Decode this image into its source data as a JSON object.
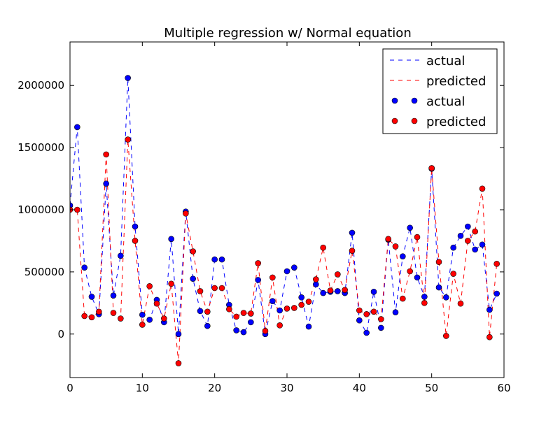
{
  "chart_data": {
    "type": "line",
    "title": "Multiple regression w/ Normal equation",
    "xlabel": "",
    "ylabel": "",
    "xlim": [
      0,
      60
    ],
    "ylim": [
      -350000,
      2350000
    ],
    "x_ticks": [
      0,
      10,
      20,
      30,
      40,
      50,
      60
    ],
    "x_tick_labels": [
      "0",
      "10",
      "20",
      "30",
      "40",
      "50",
      "60"
    ],
    "y_ticks": [
      0,
      500000,
      1000000,
      1500000,
      2000000
    ],
    "y_tick_labels": [
      "0",
      "500000",
      "1000000",
      "1500000",
      "2000000"
    ],
    "grid": false,
    "legend_position": "top-right",
    "legend": [
      {
        "label": "actual",
        "style": "dashed-line",
        "color": "#0000ff"
      },
      {
        "label": "predicted",
        "style": "dashed-line",
        "color": "#ff0000"
      },
      {
        "label": "actual",
        "style": "marker",
        "color": "#0000ff"
      },
      {
        "label": "predicted",
        "style": "marker",
        "color": "#ff0000"
      }
    ],
    "x": [
      0,
      1,
      2,
      3,
      4,
      5,
      6,
      7,
      8,
      9,
      10,
      11,
      12,
      13,
      14,
      15,
      16,
      17,
      18,
      19,
      20,
      21,
      22,
      23,
      24,
      25,
      26,
      27,
      28,
      29,
      30,
      31,
      32,
      33,
      34,
      35,
      36,
      37,
      38,
      39,
      40,
      41,
      42,
      43,
      44,
      45,
      46,
      47,
      48,
      49,
      50,
      51,
      52,
      53,
      54,
      55,
      56,
      57,
      58,
      59
    ],
    "series": [
      {
        "name": "actual",
        "color": "#0000ff",
        "values": [
          1035000,
          1665000,
          535000,
          300000,
          160000,
          1210000,
          310000,
          630000,
          2060000,
          865000,
          155000,
          115000,
          275000,
          95000,
          765000,
          0,
          985000,
          445000,
          185000,
          65000,
          600000,
          600000,
          235000,
          30000,
          15000,
          95000,
          435000,
          0,
          265000,
          190000,
          505000,
          535000,
          295000,
          60000,
          400000,
          330000,
          340000,
          345000,
          330000,
          815000,
          110000,
          10000,
          340000,
          50000,
          760000,
          175000,
          625000,
          855000,
          455000,
          300000,
          1330000,
          375000,
          295000,
          695000,
          790000,
          865000,
          680000,
          720000,
          195000,
          325000
        ]
      },
      {
        "name": "predicted",
        "color": "#ff0000",
        "values": [
          1000000,
          1000000,
          145000,
          135000,
          180000,
          1445000,
          170000,
          125000,
          1565000,
          750000,
          75000,
          385000,
          245000,
          125000,
          405000,
          -235000,
          970000,
          665000,
          345000,
          180000,
          370000,
          370000,
          200000,
          140000,
          170000,
          165000,
          570000,
          25000,
          455000,
          70000,
          205000,
          210000,
          235000,
          260000,
          440000,
          695000,
          350000,
          480000,
          355000,
          670000,
          190000,
          160000,
          180000,
          120000,
          765000,
          705000,
          285000,
          505000,
          780000,
          250000,
          1335000,
          580000,
          -15000,
          485000,
          245000,
          750000,
          825000,
          1170000,
          -25000,
          565000
        ]
      }
    ]
  }
}
